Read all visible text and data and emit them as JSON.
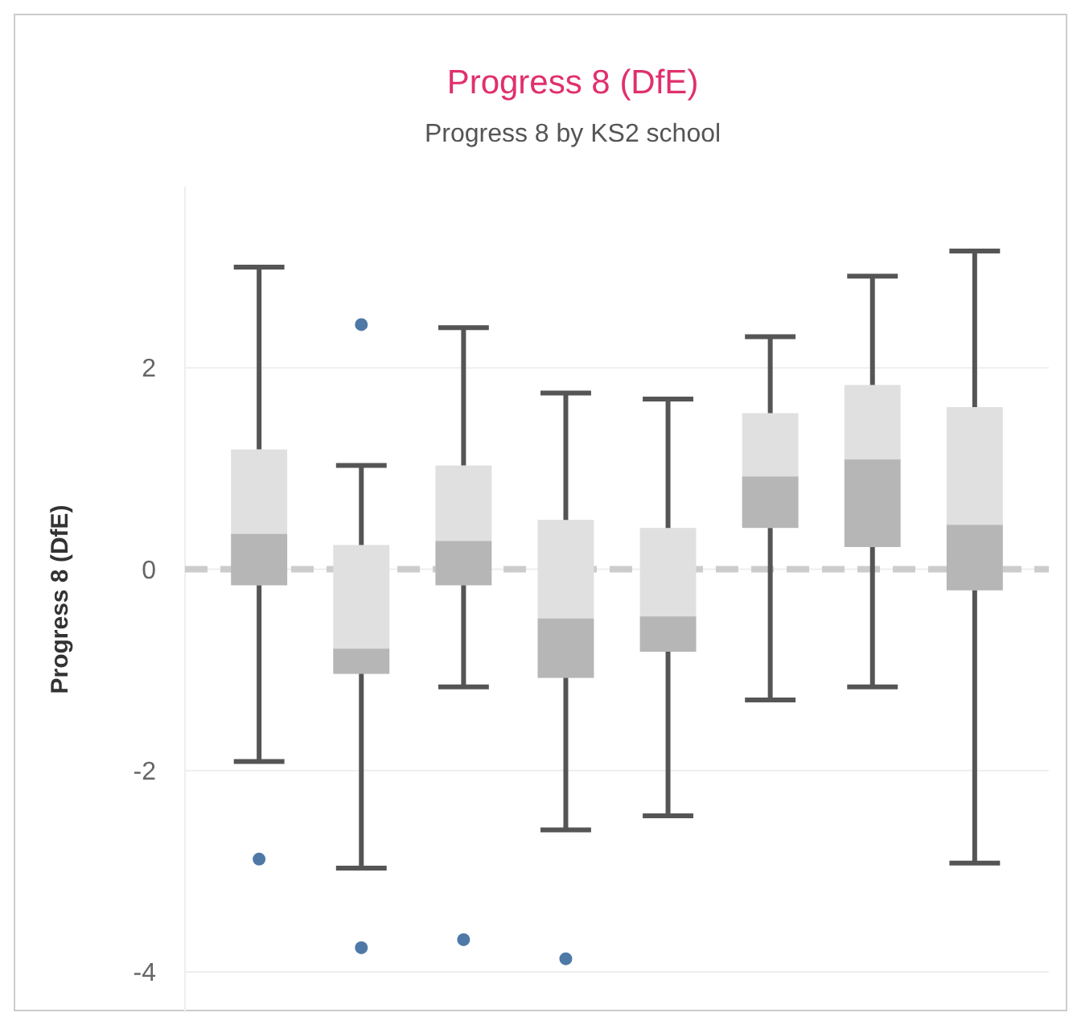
{
  "chart_data": {
    "type": "box",
    "title": "Progress 8 (DfE)",
    "subtitle": "Progress 8 by KS2 school",
    "ylabel": "Progress 8 (DfE)",
    "categories": [
      null,
      null,
      null,
      null,
      null,
      null,
      null,
      null
    ],
    "series": [
      {
        "color": "#e0e0e0",
        "boxes": [
          {
            "low": -1.91,
            "q1": -0.16,
            "median": 0.35,
            "q3": 1.19,
            "high": 3.0,
            "outliers": [
              -2.88
            ]
          },
          {
            "low": -2.97,
            "q1": -1.04,
            "median": -0.79,
            "q3": 0.24,
            "high": 1.03,
            "outliers": [
              2.43,
              -3.76
            ]
          },
          {
            "low": -1.17,
            "q1": -0.16,
            "median": 0.28,
            "q3": 1.03,
            "high": 2.4,
            "outliers": [
              -3.68
            ]
          },
          {
            "low": -2.59,
            "q1": -1.08,
            "median": -0.49,
            "q3": 0.49,
            "high": 1.75,
            "outliers": [
              -3.87
            ]
          },
          {
            "low": -2.45,
            "q1": -0.82,
            "median": -0.47,
            "q3": 0.41,
            "high": 1.69
          },
          {
            "low": -1.3,
            "q1": 0.41,
            "median": 0.92,
            "q3": 1.55,
            "high": 2.31
          },
          {
            "low": -1.17,
            "q1": 0.22,
            "median": 1.09,
            "q3": 1.83,
            "high": 2.91
          },
          {
            "low": -2.92,
            "q1": -0.21,
            "median": 0.44,
            "q3": 1.61,
            "high": 3.16
          }
        ]
      }
    ],
    "ylim": [
      -4.4,
      3.8
    ],
    "yticks": [
      -4,
      -2,
      0,
      2
    ],
    "grid": "y",
    "tick_labels": "y",
    "ref_lines": [
      {
        "axis": "y",
        "value": 0,
        "color": "#cccccc",
        "line_style": "dashed"
      }
    ]
  }
}
